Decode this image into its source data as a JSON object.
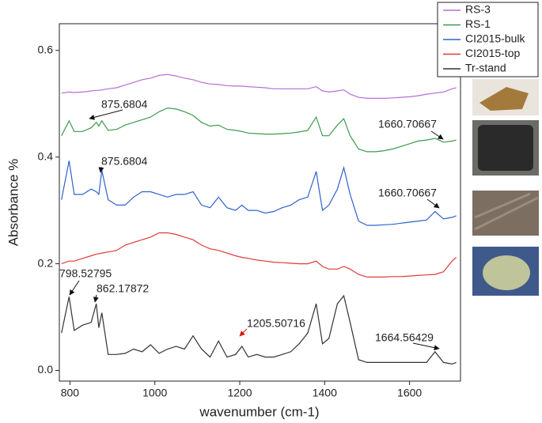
{
  "chart_data": {
    "type": "line",
    "xlabel": "wavenumber (cm-1)",
    "ylabel": "Absorbance %",
    "x": [
      780,
      798,
      810,
      830,
      850,
      862,
      868,
      875,
      890,
      910,
      930,
      950,
      970,
      990,
      1010,
      1030,
      1050,
      1070,
      1090,
      1110,
      1130,
      1150,
      1170,
      1190,
      1205,
      1220,
      1240,
      1260,
      1280,
      1300,
      1320,
      1340,
      1360,
      1380,
      1395,
      1410,
      1430,
      1445,
      1460,
      1480,
      1500,
      1520,
      1540,
      1560,
      1580,
      1600,
      1620,
      1640,
      1660,
      1680,
      1700,
      1710
    ],
    "series": [
      {
        "name": "RS-3",
        "color": "#b46fd6",
        "values": [
          0.52,
          0.522,
          0.521,
          0.522,
          0.524,
          0.525,
          0.525,
          0.526,
          0.528,
          0.53,
          0.535,
          0.54,
          0.545,
          0.548,
          0.553,
          0.555,
          0.552,
          0.548,
          0.545,
          0.54,
          0.537,
          0.536,
          0.534,
          0.533,
          0.533,
          0.532,
          0.531,
          0.53,
          0.528,
          0.528,
          0.528,
          0.528,
          0.528,
          0.532,
          0.524,
          0.522,
          0.524,
          0.526,
          0.518,
          0.512,
          0.51,
          0.51,
          0.51,
          0.511,
          0.512,
          0.513,
          0.515,
          0.518,
          0.52,
          0.522,
          0.528,
          0.53
        ]
      },
      {
        "name": "RS-1",
        "color": "#3c9a4e",
        "values": [
          0.44,
          0.468,
          0.448,
          0.448,
          0.455,
          0.465,
          0.458,
          0.468,
          0.45,
          0.452,
          0.46,
          0.465,
          0.47,
          0.475,
          0.485,
          0.492,
          0.49,
          0.485,
          0.478,
          0.465,
          0.458,
          0.46,
          0.452,
          0.45,
          0.448,
          0.445,
          0.444,
          0.443,
          0.443,
          0.444,
          0.445,
          0.447,
          0.45,
          0.475,
          0.44,
          0.44,
          0.46,
          0.472,
          0.44,
          0.415,
          0.41,
          0.41,
          0.412,
          0.415,
          0.42,
          0.425,
          0.43,
          0.432,
          0.435,
          0.428,
          0.43,
          0.432
        ]
      },
      {
        "name": "CI2015-bulk",
        "color": "#2f62cc",
        "values": [
          0.32,
          0.393,
          0.33,
          0.33,
          0.34,
          0.335,
          0.33,
          0.375,
          0.32,
          0.31,
          0.31,
          0.325,
          0.335,
          0.335,
          0.33,
          0.325,
          0.33,
          0.33,
          0.335,
          0.31,
          0.305,
          0.325,
          0.305,
          0.3,
          0.31,
          0.3,
          0.3,
          0.295,
          0.298,
          0.305,
          0.31,
          0.32,
          0.325,
          0.373,
          0.3,
          0.31,
          0.34,
          0.38,
          0.33,
          0.28,
          0.272,
          0.272,
          0.273,
          0.274,
          0.276,
          0.278,
          0.28,
          0.282,
          0.298,
          0.284,
          0.287,
          0.29
        ]
      },
      {
        "name": "CI2015-top",
        "color": "#e03a3a",
        "values": [
          0.2,
          0.205,
          0.205,
          0.21,
          0.215,
          0.218,
          0.219,
          0.22,
          0.222,
          0.225,
          0.235,
          0.24,
          0.245,
          0.25,
          0.258,
          0.258,
          0.255,
          0.25,
          0.245,
          0.235,
          0.228,
          0.225,
          0.22,
          0.215,
          0.212,
          0.21,
          0.207,
          0.205,
          0.203,
          0.202,
          0.201,
          0.2,
          0.2,
          0.205,
          0.195,
          0.19,
          0.19,
          0.195,
          0.19,
          0.18,
          0.175,
          0.175,
          0.175,
          0.176,
          0.176,
          0.177,
          0.178,
          0.179,
          0.18,
          0.185,
          0.205,
          0.212
        ]
      },
      {
        "name": "Tr-stand",
        "color": "#333333",
        "values": [
          0.07,
          0.138,
          0.075,
          0.085,
          0.09,
          0.125,
          0.08,
          0.108,
          0.03,
          0.03,
          0.032,
          0.04,
          0.035,
          0.048,
          0.032,
          0.04,
          0.045,
          0.04,
          0.065,
          0.04,
          0.025,
          0.055,
          0.025,
          0.03,
          0.045,
          0.025,
          0.03,
          0.025,
          0.025,
          0.03,
          0.035,
          0.05,
          0.07,
          0.125,
          0.05,
          0.06,
          0.125,
          0.14,
          0.09,
          0.02,
          0.015,
          0.015,
          0.015,
          0.015,
          0.015,
          0.015,
          0.015,
          0.015,
          0.035,
          0.015,
          0.012,
          0.015
        ]
      }
    ],
    "xlim": [
      775,
      1720
    ],
    "ylim": [
      -0.02,
      0.65
    ],
    "xticks": [
      800,
      1000,
      1200,
      1400,
      1600
    ],
    "yticks": [
      {
        "value": 0,
        "label": "0.0"
      },
      0.2,
      0.4,
      0.6
    ],
    "annotations": [
      "875.6804",
      "875.6804",
      "1660.70667",
      "1660.70667",
      "798.52795",
      "862.17872",
      "1205.50716",
      "1664.56429"
    ],
    "legend": "upper right"
  }
}
